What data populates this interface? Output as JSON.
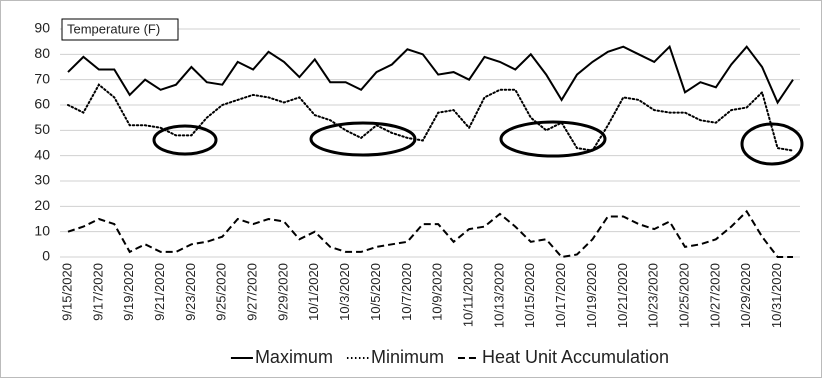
{
  "chart_data": {
    "type": "line",
    "title": "Temperature (F)",
    "categories": [
      "9/15/2020",
      null,
      "9/17/2020",
      null,
      "9/19/2020",
      null,
      "9/21/2020",
      null,
      "9/23/2020",
      null,
      "9/25/2020",
      null,
      "9/27/2020",
      null,
      "9/29/2020",
      null,
      "10/1/2020",
      null,
      "10/3/2020",
      null,
      "10/5/2020",
      null,
      "10/7/2020",
      null,
      "10/9/2020",
      null,
      "10/11/2020",
      null,
      "10/13/2020",
      null,
      "10/15/2020",
      null,
      "10/17/2020",
      null,
      "10/19/2020",
      null,
      "10/21/2020",
      null,
      "10/23/2020",
      null,
      "10/25/2020",
      null,
      "10/27/2020",
      null,
      "10/29/2020",
      null,
      "10/31/2020",
      null
    ],
    "series": [
      {
        "name": "Maximum",
        "color": "#000000",
        "linestyle": "solid",
        "values": [
          73,
          79,
          74,
          74,
          64,
          70,
          66,
          68,
          75,
          69,
          68,
          77,
          74,
          81,
          77,
          71,
          78,
          69,
          69,
          66,
          73,
          76,
          82,
          80,
          72,
          73,
          70,
          79,
          77,
          74,
          80,
          72,
          62,
          72,
          77,
          81,
          83,
          80,
          77,
          83,
          65,
          69,
          67,
          76,
          83,
          75,
          61,
          70
        ]
      },
      {
        "name": "Minimum",
        "color": "#000000",
        "linestyle": "dotted",
        "values": [
          60,
          57,
          68,
          63,
          52,
          52,
          51,
          48,
          48,
          55,
          60,
          62,
          64,
          63,
          61,
          63,
          56,
          54,
          50,
          47,
          52,
          49,
          47,
          46,
          57,
          58,
          51,
          63,
          66,
          66,
          55,
          50,
          53,
          43,
          42,
          52,
          63,
          62,
          58,
          57,
          57,
          54,
          53,
          58,
          59,
          65,
          43,
          42
        ]
      },
      {
        "name": "Heat Unit Accumulation",
        "color": "#000000",
        "linestyle": "dashed",
        "values": [
          10,
          12,
          15,
          13,
          2,
          5,
          2,
          2,
          5,
          6,
          8,
          15,
          13,
          15,
          14,
          7,
          10,
          4,
          2,
          2,
          4,
          5,
          6,
          13,
          13,
          6,
          11,
          12,
          17,
          12,
          6,
          7,
          0,
          1,
          7,
          16,
          16,
          13,
          11,
          14,
          4,
          5,
          7,
          12,
          18,
          8,
          0,
          0
        ]
      }
    ],
    "ylim": [
      0,
      90
    ],
    "yticks": [
      0,
      10,
      20,
      30,
      40,
      50,
      60,
      70,
      80,
      90
    ],
    "grid": true,
    "legend": "bottom"
  }
}
